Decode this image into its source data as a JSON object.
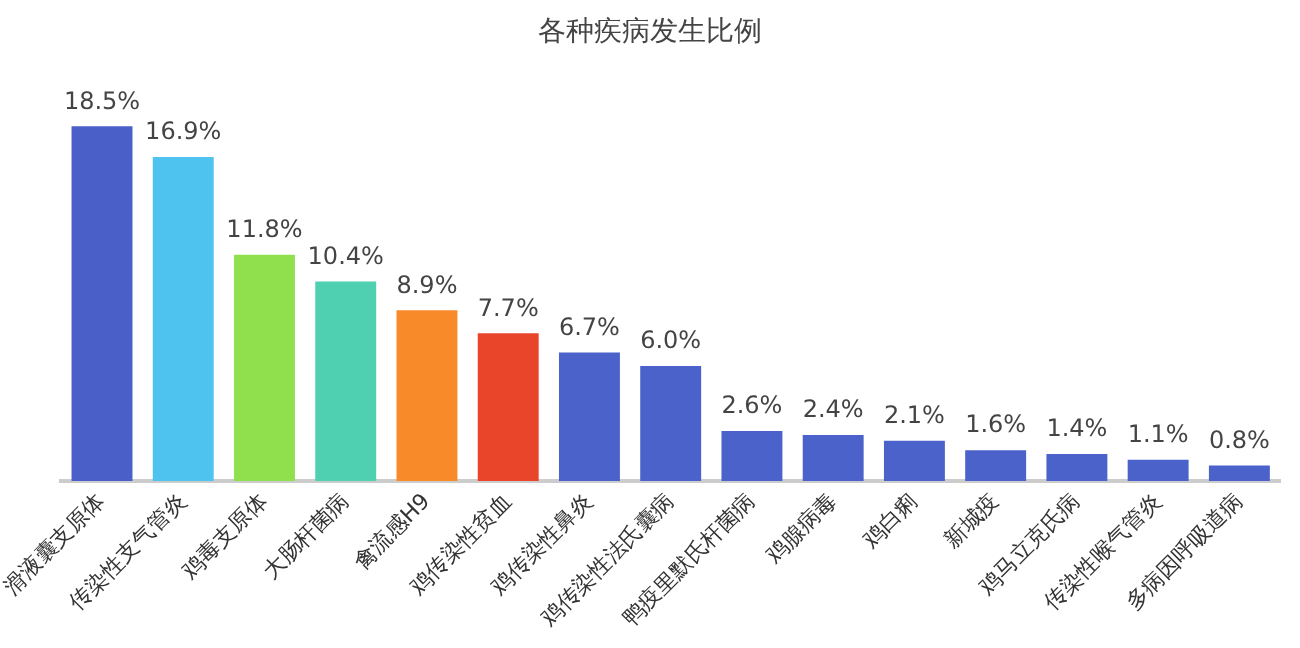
{
  "chart_data": {
    "type": "bar",
    "title": "各种疾病发生比例",
    "categories": [
      "滑液囊支原体",
      "传染性支气管炎",
      "鸡毒支原体",
      "大肠杆菌病",
      "禽流感H9",
      "鸡传染性贫血",
      "鸡传染性鼻炎",
      "鸡传染性法氏囊病",
      "鸭疫里默氏杆菌病",
      "鸡腺病毒",
      "鸡白痢",
      "新城疫",
      "鸡马立克氏病",
      "传染性喉气管炎",
      "多病因呼吸道病"
    ],
    "values": [
      18.5,
      16.9,
      11.8,
      10.4,
      8.9,
      7.7,
      6.7,
      6.0,
      2.6,
      2.4,
      2.1,
      1.6,
      1.4,
      1.1,
      0.8
    ],
    "value_labels": [
      "18.5%",
      "16.9%",
      "11.8%",
      "10.4%",
      "8.9%",
      "7.7%",
      "6.7%",
      "6.0%",
      "2.6%",
      "2.4%",
      "2.1%",
      "1.6%",
      "1.4%",
      "1.1%",
      "0.8%"
    ],
    "colors": [
      "#4a5fc8",
      "#4fc3f0",
      "#8fe04c",
      "#4fd0b0",
      "#f88a2a",
      "#e8452a",
      "#4a62c9",
      "#4a62c9",
      "#4a62c9",
      "#4a62c9",
      "#4a62c9",
      "#4a62c9",
      "#4a62c9",
      "#4a62c9",
      "#4a62c9"
    ],
    "legend": false
  }
}
